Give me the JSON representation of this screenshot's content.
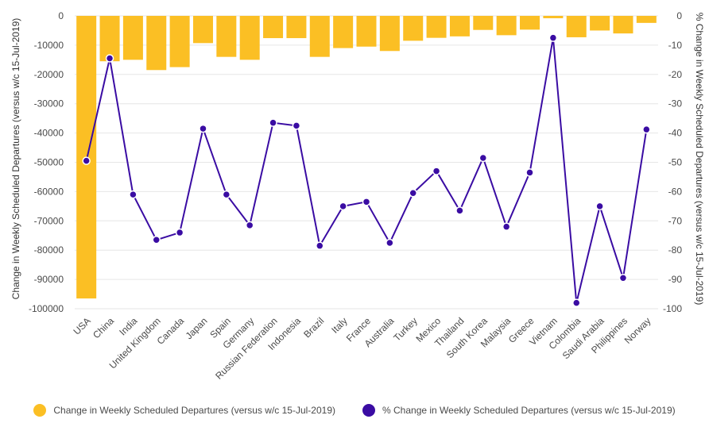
{
  "chart_data": {
    "type": "bar",
    "categories": [
      "USA",
      "China",
      "India",
      "United Kingdom",
      "Canada",
      "Japan",
      "Spain",
      "Germany",
      "Russian Federation",
      "Indonesia",
      "Brazil",
      "Italy",
      "France",
      "Australia",
      "Turkey",
      "Mexico",
      "Thailand",
      "South Korea",
      "Malaysia",
      "Greece",
      "Vietnam",
      "Colombia",
      "Saudi Arabia",
      "Philippines",
      "Norway"
    ],
    "series": [
      {
        "name": "Change in Weekly Scheduled Departures (versus w/c 15-Jul-2019)",
        "type": "bar",
        "axis": "left",
        "color": "#FBBF24",
        "values": [
          -96500,
          -15500,
          -15000,
          -18500,
          -17500,
          -9300,
          -14000,
          -15000,
          -7600,
          -7600,
          -14000,
          -11000,
          -10500,
          -12000,
          -8500,
          -7500,
          -7000,
          -4800,
          -6600,
          -4700,
          -800,
          -7300,
          -5000,
          -6000,
          -2400
        ]
      },
      {
        "name": "% Change in Weekly Scheduled Departures (versus w/c 15-Jul-2019)",
        "type": "line",
        "axis": "right",
        "color": "#3A0CA3",
        "values": [
          -49.5,
          -14.5,
          -61,
          -76.5,
          -74,
          -38.5,
          -61,
          -71.5,
          -36.5,
          -37.5,
          -78.5,
          -65,
          -63.5,
          -77.5,
          -60.5,
          -53,
          -66.5,
          -48.5,
          -72,
          -53.5,
          -7.5,
          -98,
          -65,
          -89.5,
          -38.8
        ]
      }
    ],
    "y_left": {
      "label": "Change in Weekly Scheduled Departures (versus w/c 15-Jul-2019)",
      "lim": [
        -100000,
        0
      ],
      "ticks": [
        0,
        -10000,
        -20000,
        -30000,
        -40000,
        -50000,
        -60000,
        -70000,
        -80000,
        -90000,
        -100000
      ]
    },
    "y_right": {
      "label": "% Change in Weekly Scheduled Departures (versus w/c 15-Jul-2019)",
      "lim": [
        -100,
        0
      ],
      "ticks": [
        0,
        -10,
        -20,
        -30,
        -40,
        -50,
        -60,
        -70,
        -80,
        -90,
        -100
      ]
    },
    "grid": true,
    "legend_position": "bottom"
  }
}
